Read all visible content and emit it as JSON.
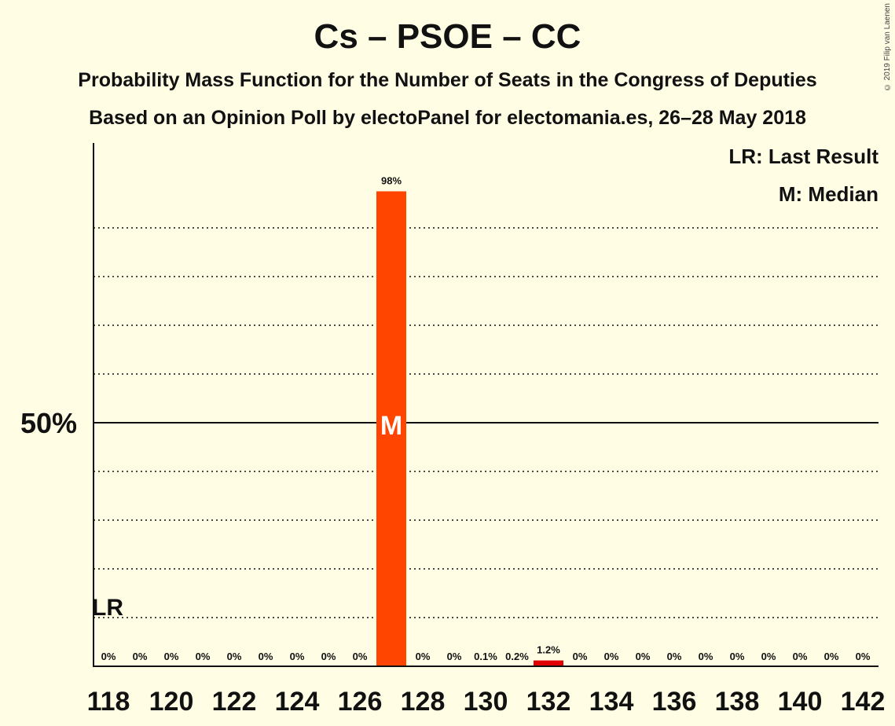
{
  "chart_data": {
    "type": "bar",
    "title": "Cs – PSOE – CC",
    "subtitle": "Probability Mass Function for the Number of Seats in the Congress of Deputies",
    "source": "Based on an Opinion Poll by electoPanel for electomania.es, 26–28 May 2018",
    "copyright": "© 2019 Filip van Laenen",
    "legend": [
      "LR: Last Result",
      "M: Median"
    ],
    "legend_position": "top-right",
    "x": [
      118,
      119,
      120,
      121,
      122,
      123,
      124,
      125,
      126,
      127,
      128,
      129,
      130,
      131,
      132,
      133,
      134,
      135,
      136,
      137,
      138,
      139,
      140,
      141,
      142
    ],
    "values": [
      0,
      0,
      0,
      0,
      0,
      0,
      0,
      0,
      0,
      97.5,
      0,
      0,
      0.1,
      0.2,
      1.2,
      0,
      0,
      0,
      0,
      0,
      0,
      0,
      0,
      0,
      0
    ],
    "labels": [
      "0%",
      "0%",
      "0%",
      "0%",
      "0%",
      "0%",
      "0%",
      "0%",
      "0%",
      "98%",
      "0%",
      "0%",
      "0.1%",
      "0.2%",
      "1.2%",
      "0%",
      "0%",
      "0%",
      "0%",
      "0%",
      "0%",
      "0%",
      "0%",
      "0%",
      "0%"
    ],
    "xticks": [
      118,
      120,
      122,
      124,
      126,
      128,
      130,
      132,
      134,
      136,
      138,
      140,
      142
    ],
    "ylim": [
      0,
      107
    ],
    "y_gridlines": [
      10,
      20,
      30,
      40,
      60,
      70,
      80,
      90
    ],
    "y_major_line": 50,
    "ytick_label": "50%",
    "median_seat": 127,
    "median_marker": "M",
    "last_result_seat": 118,
    "last_result_marker": "LR",
    "colors": {
      "median_bar": "#FF4500",
      "other_bar": "#E00000",
      "background": "#FFFDE4",
      "text": "#111111"
    }
  }
}
